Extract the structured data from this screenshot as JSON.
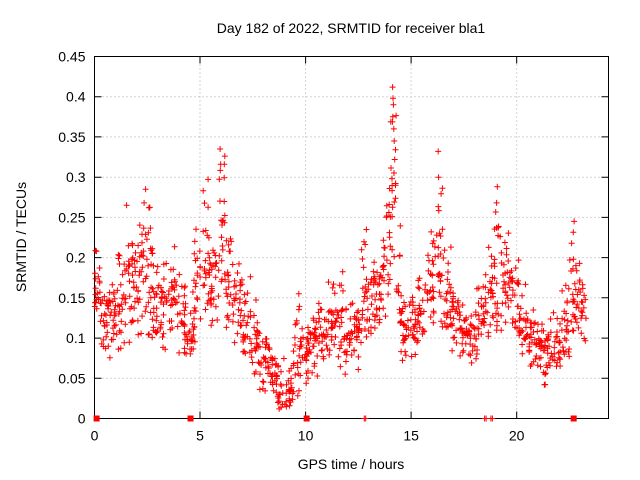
{
  "chart_data": {
    "type": "scatter",
    "title": "Day 182 of 2022, SRMTID for receiver bla1",
    "xlabel": "GPS time / hours",
    "ylabel": "SRMTID / TECUs",
    "xlim": [
      0,
      24.35
    ],
    "ylim": [
      0,
      0.45
    ],
    "xtick_values": [
      0,
      5,
      10,
      15,
      20
    ],
    "xtick_labels": [
      "0",
      "5",
      "10",
      "15",
      "20"
    ],
    "ytick_values": [
      0,
      0.05,
      0.1,
      0.15,
      0.2,
      0.25,
      0.3,
      0.35,
      0.4,
      0.45
    ],
    "ytick_labels": [
      "0",
      "0.05",
      "0.1",
      "0.15",
      "0.2",
      "0.25",
      "0.3",
      "0.35",
      "0.4",
      "0.45"
    ],
    "grid": true,
    "legend_position": "none",
    "marker": {
      "shape": "plus",
      "size": 7,
      "color": "#ff0000"
    },
    "grid_color": "#a8a8a8",
    "border_color": "#000000",
    "background_color": "#ffffff",
    "series_envelope": {
      "comment": "dense 30s SRMTID samples summarized as bins [t_start,t_end,value_min,value_max,n_points]; points regenerated deterministically",
      "seed": 182,
      "bins": [
        [
          0.0,
          0.3,
          0.1,
          0.215,
          20
        ],
        [
          0.3,
          0.7,
          0.08,
          0.19,
          24
        ],
        [
          0.7,
          1.1,
          0.07,
          0.18,
          24
        ],
        [
          1.1,
          1.5,
          0.08,
          0.23,
          26
        ],
        [
          1.5,
          1.9,
          0.09,
          0.265,
          26
        ],
        [
          1.9,
          2.3,
          0.1,
          0.26,
          26
        ],
        [
          2.3,
          2.7,
          0.1,
          0.285,
          26
        ],
        [
          2.7,
          3.1,
          0.09,
          0.24,
          26
        ],
        [
          3.1,
          3.5,
          0.08,
          0.21,
          24
        ],
        [
          3.5,
          3.9,
          0.09,
          0.215,
          24
        ],
        [
          3.9,
          4.3,
          0.08,
          0.185,
          24
        ],
        [
          4.3,
          4.7,
          0.07,
          0.16,
          24
        ],
        [
          4.7,
          5.1,
          0.09,
          0.25,
          24
        ],
        [
          5.1,
          5.5,
          0.12,
          0.31,
          26
        ],
        [
          5.5,
          5.9,
          0.1,
          0.27,
          24
        ],
        [
          5.9,
          6.2,
          0.13,
          0.335,
          22
        ],
        [
          6.2,
          6.6,
          0.1,
          0.25,
          24
        ],
        [
          6.6,
          7.0,
          0.08,
          0.22,
          24
        ],
        [
          7.0,
          7.4,
          0.06,
          0.2,
          24
        ],
        [
          7.4,
          7.8,
          0.05,
          0.15,
          24
        ],
        [
          7.8,
          8.2,
          0.03,
          0.12,
          24
        ],
        [
          8.2,
          8.6,
          0.02,
          0.1,
          24
        ],
        [
          8.6,
          9.0,
          0.01,
          0.085,
          24
        ],
        [
          9.0,
          9.4,
          0.005,
          0.07,
          24
        ],
        [
          9.4,
          9.8,
          0.02,
          0.155,
          24
        ],
        [
          9.8,
          10.2,
          0.04,
          0.12,
          24
        ],
        [
          10.2,
          10.6,
          0.04,
          0.15,
          24
        ],
        [
          10.6,
          11.0,
          0.05,
          0.17,
          24
        ],
        [
          11.0,
          11.4,
          0.06,
          0.19,
          24
        ],
        [
          11.4,
          11.8,
          0.06,
          0.21,
          24
        ],
        [
          11.8,
          12.2,
          0.05,
          0.16,
          24
        ],
        [
          12.2,
          12.6,
          0.06,
          0.17,
          24
        ],
        [
          12.6,
          13.0,
          0.08,
          0.235,
          26
        ],
        [
          13.0,
          13.4,
          0.09,
          0.21,
          24
        ],
        [
          13.4,
          13.8,
          0.1,
          0.255,
          24
        ],
        [
          13.8,
          14.0,
          0.13,
          0.3,
          13
        ],
        [
          14.0,
          14.3,
          0.15,
          0.4,
          20
        ],
        [
          14.3,
          14.5,
          0.1,
          0.25,
          11
        ],
        [
          14.5,
          14.9,
          0.07,
          0.17,
          24
        ],
        [
          14.9,
          15.3,
          0.07,
          0.16,
          24
        ],
        [
          15.3,
          15.7,
          0.08,
          0.19,
          24
        ],
        [
          15.7,
          16.1,
          0.1,
          0.23,
          24
        ],
        [
          16.1,
          16.5,
          0.11,
          0.33,
          24
        ],
        [
          16.5,
          16.9,
          0.1,
          0.22,
          24
        ],
        [
          16.9,
          17.3,
          0.08,
          0.18,
          24
        ],
        [
          17.3,
          17.7,
          0.07,
          0.16,
          24
        ],
        [
          17.7,
          18.1,
          0.06,
          0.15,
          24
        ],
        [
          18.1,
          18.5,
          0.08,
          0.19,
          24
        ],
        [
          18.5,
          18.9,
          0.1,
          0.22,
          24
        ],
        [
          18.9,
          19.3,
          0.1,
          0.285,
          24
        ],
        [
          19.3,
          19.7,
          0.11,
          0.25,
          24
        ],
        [
          19.7,
          20.1,
          0.1,
          0.22,
          24
        ],
        [
          20.1,
          20.5,
          0.08,
          0.17,
          24
        ],
        [
          20.5,
          20.9,
          0.06,
          0.15,
          24
        ],
        [
          20.9,
          21.3,
          0.05,
          0.14,
          24
        ],
        [
          21.3,
          21.7,
          0.04,
          0.13,
          24
        ],
        [
          21.7,
          22.1,
          0.05,
          0.14,
          24
        ],
        [
          22.1,
          22.5,
          0.07,
          0.18,
          24
        ],
        [
          22.5,
          22.9,
          0.1,
          0.245,
          26
        ],
        [
          22.9,
          23.15,
          0.09,
          0.22,
          16
        ],
        [
          23.15,
          23.3,
          0.08,
          0.18,
          7
        ]
      ],
      "peak_points": [
        [
          14.12,
          0.412
        ],
        [
          14.14,
          0.398
        ],
        [
          14.16,
          0.39
        ],
        [
          14.13,
          0.375
        ],
        [
          14.18,
          0.36
        ],
        [
          14.2,
          0.345
        ],
        [
          14.22,
          0.322
        ],
        [
          5.95,
          0.335
        ],
        [
          5.98,
          0.316
        ],
        [
          16.28,
          0.332
        ],
        [
          16.3,
          0.3
        ],
        [
          2.42,
          0.285
        ],
        [
          2.35,
          0.268
        ],
        [
          19.08,
          0.288
        ],
        [
          19.05,
          0.268
        ],
        [
          1.52,
          0.265
        ],
        [
          9.68,
          0.155
        ],
        [
          12.88,
          0.235
        ],
        [
          22.72,
          0.245
        ],
        [
          15.95,
          0.232
        ]
      ],
      "axis_plus_points": [
        [
          12.78,
          0
        ],
        [
          12.85,
          0
        ],
        [
          18.48,
          0
        ],
        [
          18.55,
          0
        ],
        [
          18.78,
          0
        ],
        [
          18.85,
          0
        ]
      ],
      "axis_square_points": [
        [
          0.1,
          0
        ],
        [
          4.55,
          0
        ],
        [
          10.05,
          0
        ],
        [
          22.7,
          0
        ]
      ]
    }
  }
}
